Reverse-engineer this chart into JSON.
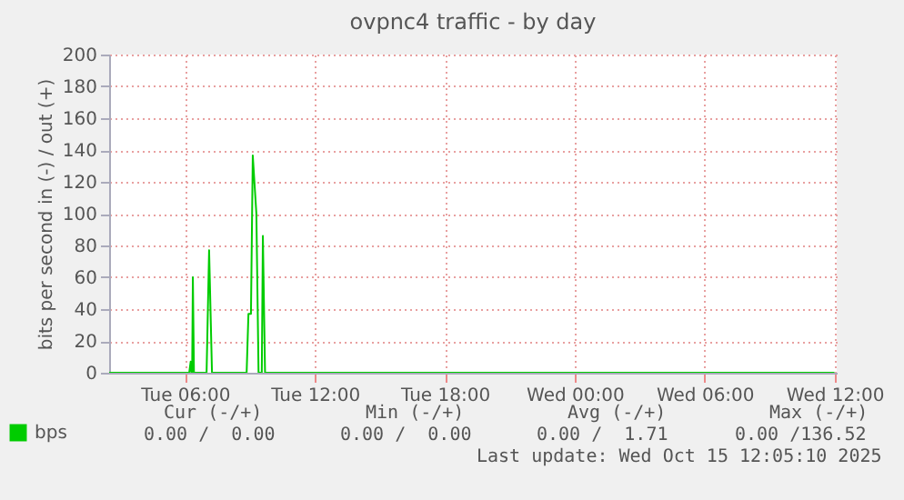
{
  "chart_data": {
    "type": "line",
    "title": "ovpnc4 traffic - by day",
    "ylabel": "bits per second in (-) / out (+)",
    "xlim": [
      "2025-10-14T02:30",
      "2025-10-15T12:06"
    ],
    "xticks": [
      {
        "value": "2025-10-14T06:00",
        "label": "Tue 06:00"
      },
      {
        "value": "2025-10-14T12:00",
        "label": "Tue 12:00"
      },
      {
        "value": "2025-10-14T18:00",
        "label": "Tue 18:00"
      },
      {
        "value": "2025-10-15T00:00",
        "label": "Wed 00:00"
      },
      {
        "value": "2025-10-15T06:00",
        "label": "Wed 06:00"
      },
      {
        "value": "2025-10-15T12:00",
        "label": "Wed 12:00"
      }
    ],
    "ylim": [
      0,
      200
    ],
    "yticks": [
      0,
      20,
      40,
      60,
      80,
      100,
      120,
      140,
      160,
      180,
      200
    ],
    "grid": true,
    "legend": "bottom left",
    "x": [
      "2025-10-14T02:30",
      "2025-10-14T06:12",
      "2025-10-14T06:16",
      "2025-10-14T06:18",
      "2025-10-14T06:20",
      "2025-10-14T06:22",
      "2025-10-14T06:25",
      "2025-10-14T07:00",
      "2025-10-14T07:07",
      "2025-10-14T07:15",
      "2025-10-14T08:51",
      "2025-10-14T08:56",
      "2025-10-14T09:03",
      "2025-10-14T09:08",
      "2025-10-14T09:18",
      "2025-10-14T09:24",
      "2025-10-14T09:33",
      "2025-10-14T09:36",
      "2025-10-14T09:42",
      "2025-10-15T12:00"
    ],
    "series": [
      {
        "name": "bps",
        "color": "#00cc00",
        "values": [
          0,
          0,
          7,
          0,
          0,
          60,
          0,
          0,
          77,
          0,
          0,
          37,
          37,
          136.52,
          100,
          0,
          0,
          86,
          0,
          0
        ]
      }
    ],
    "annotations": [
      "Cur (-/+)",
      "Min (-/+)",
      "Avg (-/+)",
      "Max (-/+)",
      "0.00 /  0.00",
      "0.00 /  0.00",
      "0.00 /  1.71",
      "0.00 /136.52",
      "Last update: Wed Oct 15 12:05:10 2025"
    ]
  }
}
